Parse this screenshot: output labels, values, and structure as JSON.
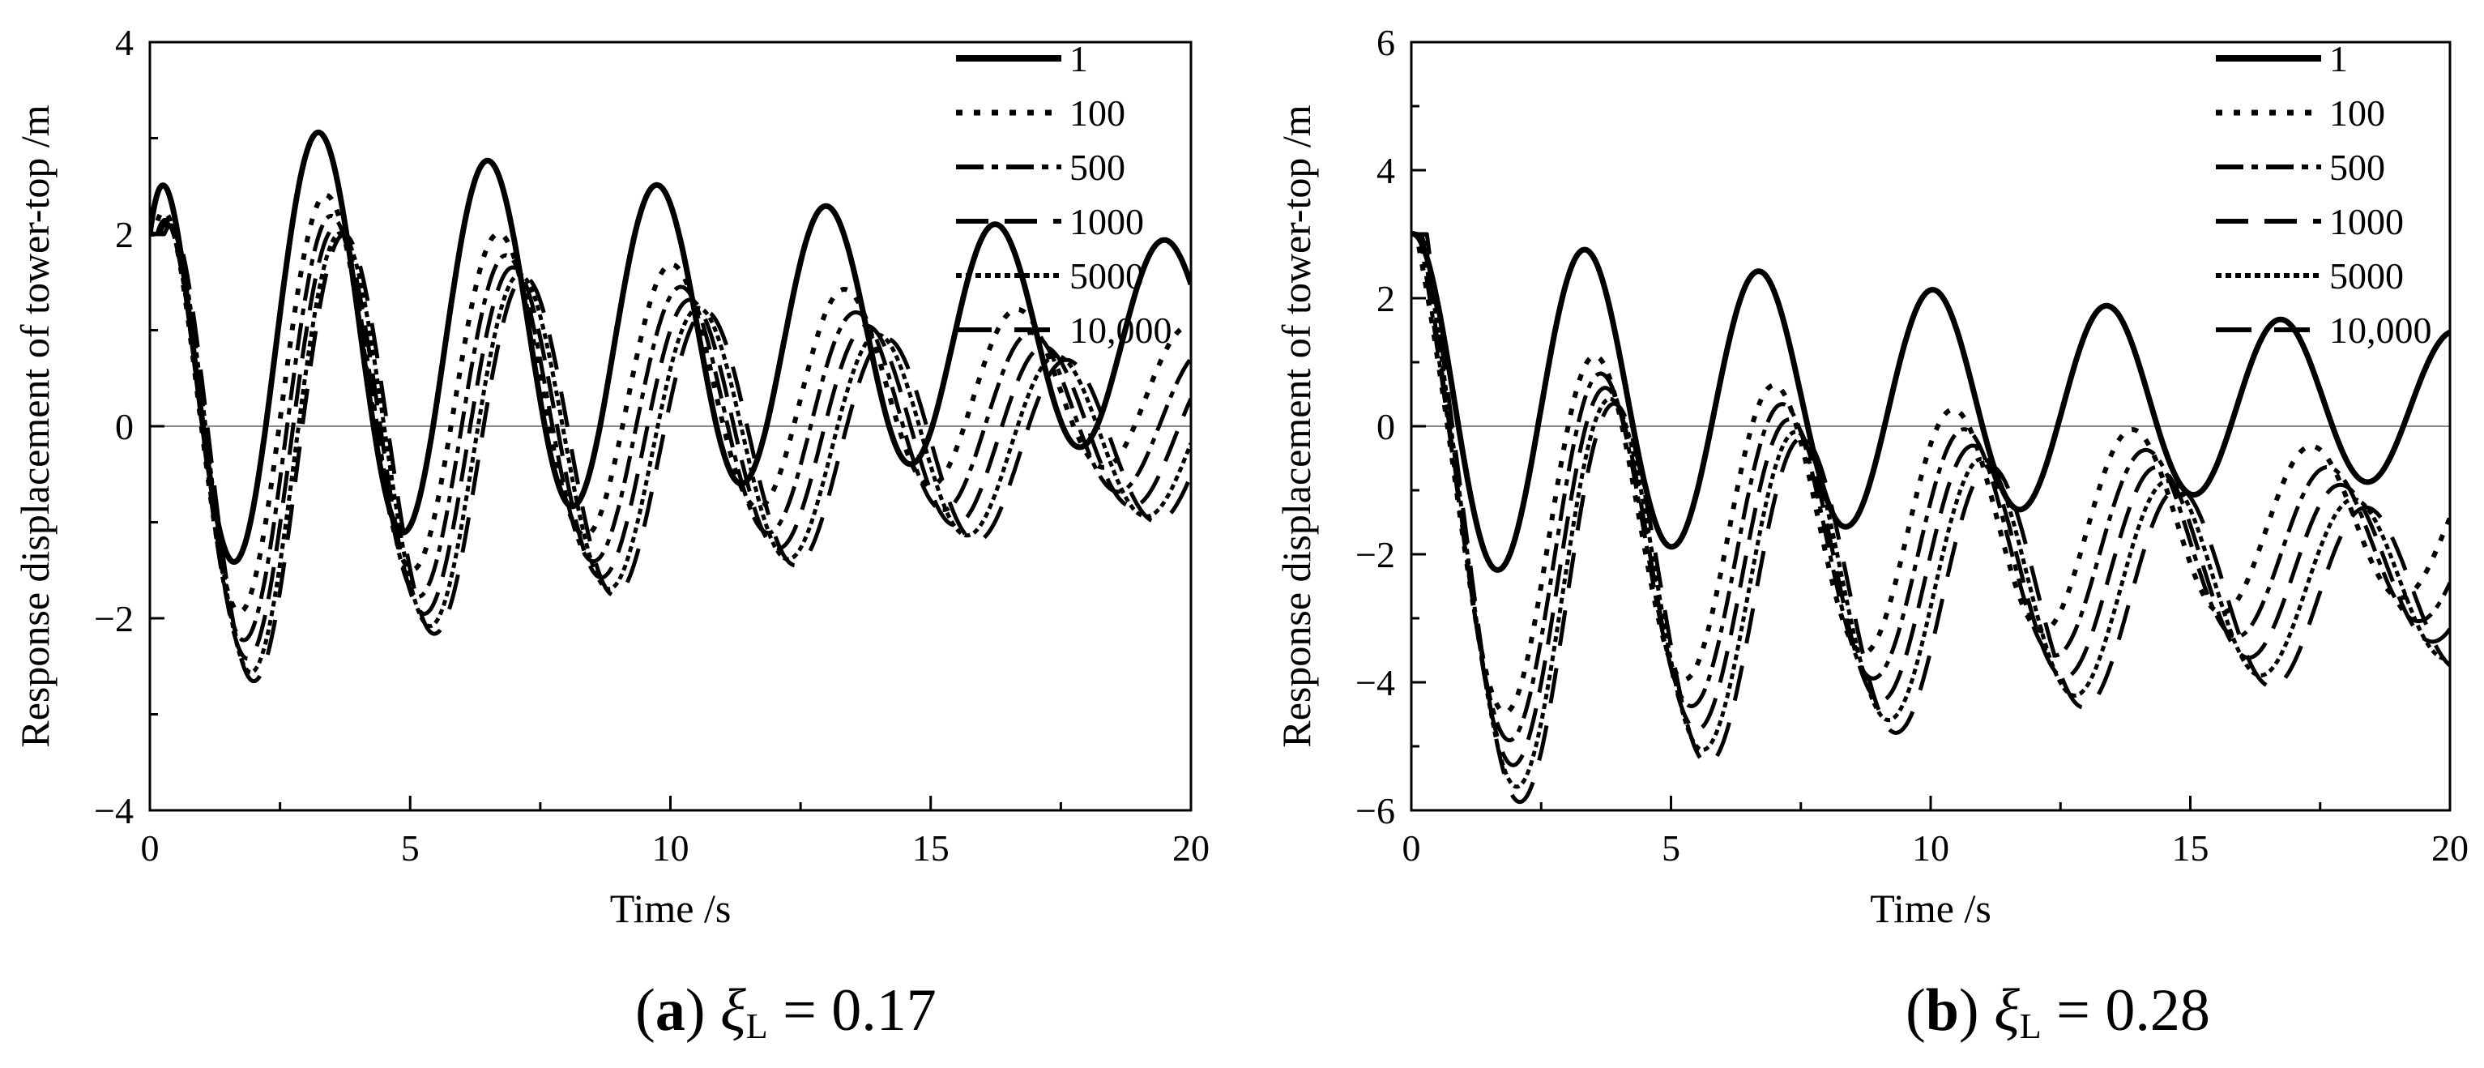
{
  "legend": {
    "entries": [
      "1",
      "100",
      "500",
      "1000",
      "5000",
      "10,000"
    ]
  },
  "chart_data": [
    {
      "type": "line",
      "panel_id": "a",
      "caption_label": "a",
      "caption_symbol": "ξ",
      "caption_subscript": "L",
      "caption_value": "= 0.17",
      "xlabel": "Time /s",
      "ylabel": "Response displacement of tower-top /m",
      "xlim": [
        0,
        20
      ],
      "ylim": [
        -4,
        4
      ],
      "xticks": [
        0,
        5,
        10,
        15,
        20
      ],
      "xtick_labels": [
        "0",
        "5",
        "10",
        "15",
        "20"
      ],
      "yticks": [
        -4,
        -2,
        0,
        2,
        4
      ],
      "ytick_labels": [
        "−4",
        "−2",
        "0",
        "2",
        "4"
      ],
      "zero_line": true,
      "series": [
        {
          "name": "1",
          "y0": 2,
          "offset": 0.9,
          "amplitude": 2.5,
          "decay": 0.045,
          "period": 3.25,
          "lag": 0.0
        },
        {
          "name": "100",
          "y0": 2,
          "offset": 0.35,
          "amplitude": 2.55,
          "decay": 0.065,
          "period": 3.32,
          "lag": 0.08
        },
        {
          "name": "500",
          "y0": 2,
          "offset": 0.1,
          "amplitude": 2.6,
          "decay": 0.065,
          "period": 3.36,
          "lag": 0.14
        },
        {
          "name": "1000",
          "y0": 2,
          "offset": -0.05,
          "amplitude": 2.65,
          "decay": 0.065,
          "period": 3.4,
          "lag": 0.19
        },
        {
          "name": "5000",
          "y0": 2,
          "offset": -0.15,
          "amplitude": 2.7,
          "decay": 0.065,
          "period": 3.44,
          "lag": 0.24
        },
        {
          "name": "10,000",
          "y0": 2,
          "offset": -0.2,
          "amplitude": 2.75,
          "decay": 0.065,
          "period": 3.47,
          "lag": 0.28
        }
      ]
    },
    {
      "type": "line",
      "panel_id": "b",
      "caption_label": "b",
      "caption_symbol": "ξ",
      "caption_subscript": "L",
      "caption_value": "= 0.28",
      "xlabel": "Time /s",
      "ylabel": "Response displacement of tower-top /m",
      "xlim": [
        0,
        20
      ],
      "ylim": [
        -6,
        6
      ],
      "xticks": [
        0,
        5,
        10,
        15,
        20
      ],
      "xtick_labels": [
        "0",
        "5",
        "10",
        "15",
        "20"
      ],
      "yticks": [
        -6,
        -4,
        -2,
        0,
        2,
        4,
        6
      ],
      "ytick_labels": [
        "−6",
        "−4",
        "−2",
        "0",
        "2",
        "4",
        "6"
      ],
      "zero_line": true,
      "series": [
        {
          "name": "1",
          "y0": 3,
          "offset": 0.35,
          "amplitude": 2.8,
          "decay": 0.045,
          "period": 3.35,
          "lag": 0.0
        },
        {
          "name": "100",
          "y0": 3,
          "offset": -1.55,
          "amplitude": 3.2,
          "decay": 0.055,
          "period": 3.45,
          "lag": 0.1
        },
        {
          "name": "500",
          "y0": 3,
          "offset": -1.9,
          "amplitude": 3.3,
          "decay": 0.055,
          "period": 3.5,
          "lag": 0.16
        },
        {
          "name": "1000",
          "y0": 3,
          "offset": -2.2,
          "amplitude": 3.4,
          "decay": 0.055,
          "period": 3.54,
          "lag": 0.21
        },
        {
          "name": "5000",
          "y0": 3,
          "offset": -2.45,
          "amplitude": 3.5,
          "decay": 0.055,
          "period": 3.58,
          "lag": 0.26
        },
        {
          "name": "10,000",
          "y0": 3,
          "offset": -2.6,
          "amplitude": 3.6,
          "decay": 0.055,
          "period": 3.62,
          "lag": 0.3
        }
      ]
    }
  ]
}
